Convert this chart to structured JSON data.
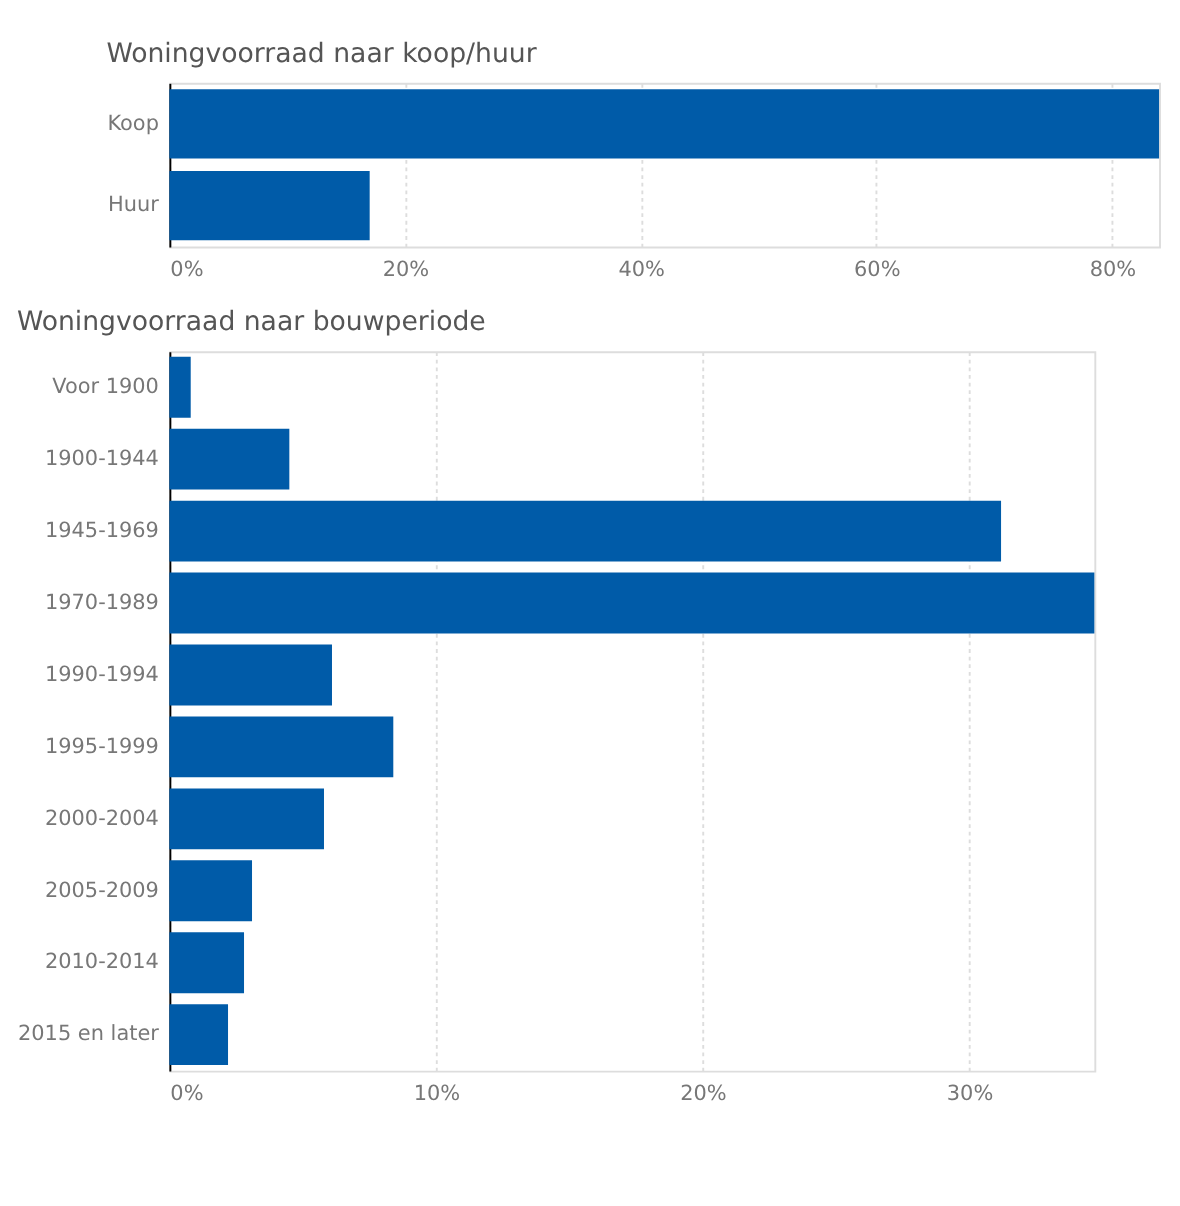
{
  "chart_data": [
    {
      "type": "bar",
      "orientation": "horizontal",
      "title": "Woningvoorraad naar koop/huur",
      "categories": [
        "Koop",
        "Huur"
      ],
      "values": [
        84,
        17
      ],
      "color": "#005ba8",
      "xlim": [
        0,
        84
      ],
      "xticks": [
        {
          "value": 0,
          "label": "0%"
        },
        {
          "value": 20,
          "label": "20%"
        },
        {
          "value": 40,
          "label": "40%"
        },
        {
          "value": 60,
          "label": "60%"
        },
        {
          "value": 80,
          "label": "80%"
        }
      ],
      "grid": "x"
    },
    {
      "type": "bar",
      "orientation": "horizontal",
      "title": "Woningvoorraad naar bouwperiode",
      "categories": [
        "Voor 1900",
        "1900-1944",
        "1945-1969",
        "1970-1989",
        "1990-1994",
        "1995-1999",
        "2000-2004",
        "2005-2009",
        "2010-2014",
        "2015 en later"
      ],
      "values": [
        0.8,
        4.5,
        31.2,
        34.7,
        6.1,
        8.4,
        5.8,
        3.1,
        2.8,
        2.2
      ],
      "color": "#005ba8",
      "xlim": [
        0,
        34.7
      ],
      "xticks": [
        {
          "value": 0,
          "label": "0%"
        },
        {
          "value": 10,
          "label": "10%"
        },
        {
          "value": 20,
          "label": "20%"
        },
        {
          "value": 30,
          "label": "30%"
        }
      ],
      "grid": "x"
    }
  ]
}
